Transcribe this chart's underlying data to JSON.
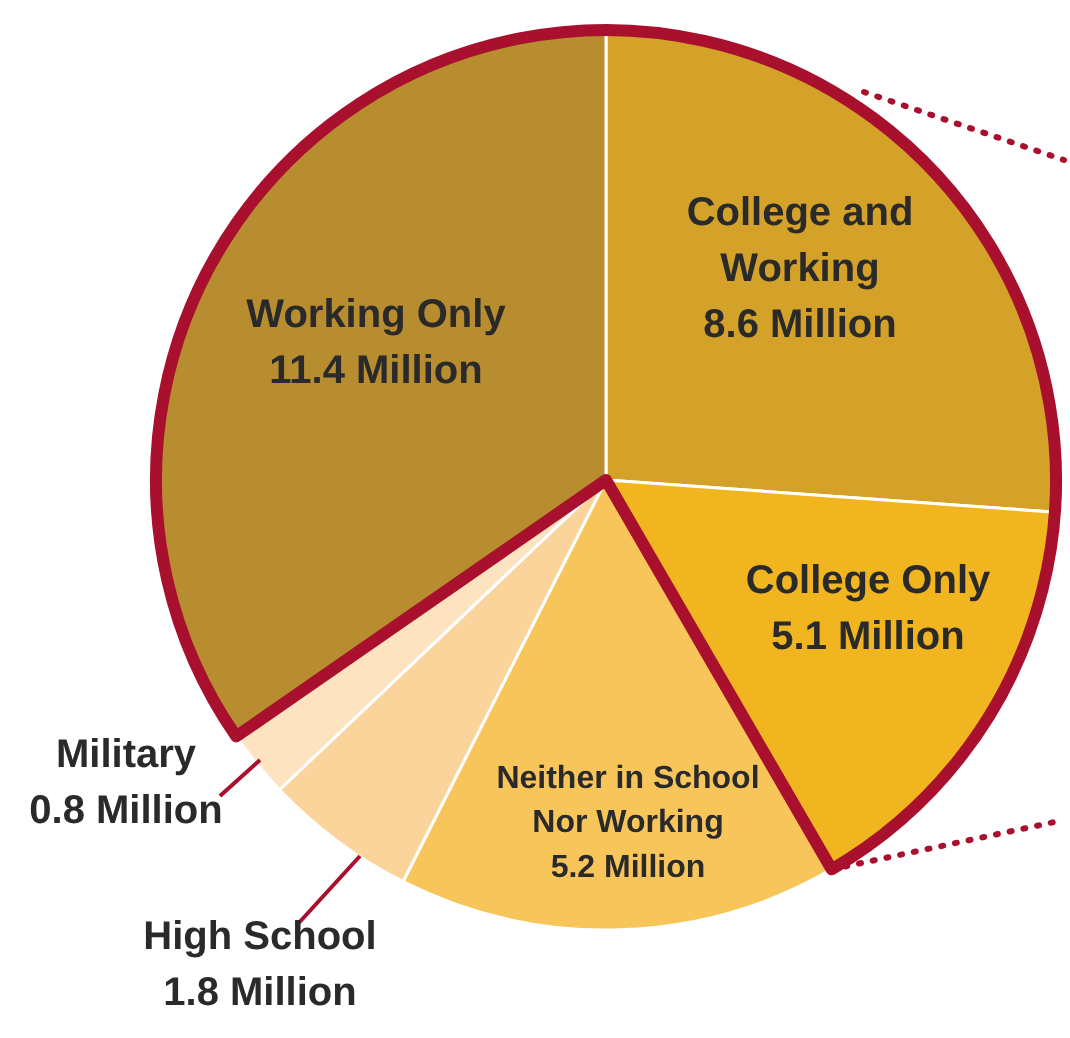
{
  "chart_data": {
    "type": "pie",
    "categories": [
      "College and Working",
      "College Only",
      "Neither in School Nor Working",
      "High School",
      "Military",
      "Working Only"
    ],
    "values": [
      8.6,
      5.1,
      5.2,
      1.8,
      0.8,
      11.4
    ],
    "colors": [
      "#d4a229",
      "#f0b51f",
      "#f7c559",
      "#fad49a",
      "#fde3c0",
      "#b78d30"
    ],
    "value_labels": [
      "8.6 Million",
      "5.1 Million",
      "5.2 Million",
      "1.8 Million",
      "0.8 Million",
      "11.4 Million"
    ]
  }
}
